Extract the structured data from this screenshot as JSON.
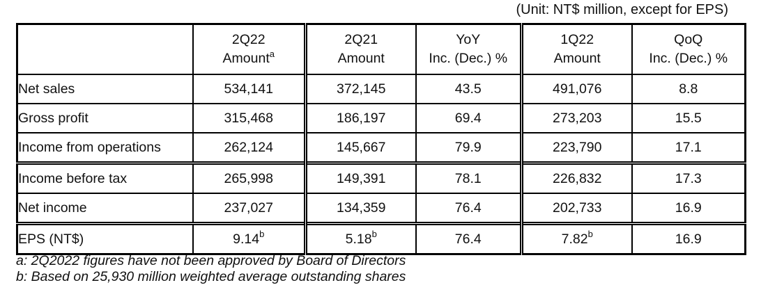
{
  "unit_label": "(Unit: NT$ million, except for EPS)",
  "table": {
    "columns": [
      {
        "top": "",
        "bottom": ""
      },
      {
        "top": "2Q22",
        "bottom": "Amount",
        "sup": "a"
      },
      {
        "top": "2Q21",
        "bottom": "Amount"
      },
      {
        "top": "YoY",
        "bottom": "Inc. (Dec.) %"
      },
      {
        "top": "1Q22",
        "bottom": "Amount"
      },
      {
        "top": "QoQ",
        "bottom": "Inc. (Dec.) %"
      }
    ],
    "rows": [
      {
        "label": "Net sales",
        "cells": [
          {
            "v": "534,141"
          },
          {
            "v": "372,145"
          },
          {
            "v": "43.5"
          },
          {
            "v": "491,076"
          },
          {
            "v": "8.8"
          }
        ]
      },
      {
        "label": "Gross profit",
        "cells": [
          {
            "v": "315,468"
          },
          {
            "v": "186,197"
          },
          {
            "v": "69.4"
          },
          {
            "v": "273,203"
          },
          {
            "v": "15.5"
          }
        ]
      },
      {
        "label": "Income from operations",
        "cells": [
          {
            "v": "262,124"
          },
          {
            "v": "145,667"
          },
          {
            "v": "79.9"
          },
          {
            "v": "223,790"
          },
          {
            "v": "17.1"
          }
        ]
      },
      {
        "label": "Income before tax",
        "group_start": true,
        "cells": [
          {
            "v": "265,998"
          },
          {
            "v": "149,391"
          },
          {
            "v": "78.1"
          },
          {
            "v": "226,832"
          },
          {
            "v": "17.3"
          }
        ]
      },
      {
        "label": "Net income",
        "cells": [
          {
            "v": "237,027"
          },
          {
            "v": "134,359"
          },
          {
            "v": "76.4"
          },
          {
            "v": "202,733"
          },
          {
            "v": "16.9"
          }
        ]
      },
      {
        "label": "EPS (NT$)",
        "group_start": true,
        "cells": [
          {
            "v": "9.14",
            "sup": "b"
          },
          {
            "v": "5.18",
            "sup": "b"
          },
          {
            "v": "76.4"
          },
          {
            "v": "7.82",
            "sup": "b"
          },
          {
            "v": "16.9"
          }
        ]
      }
    ]
  },
  "footnotes": [
    "a: 2Q2022 figures have not been approved by Board of Directors",
    "b: Based on 25,930 million weighted average outstanding shares"
  ]
}
